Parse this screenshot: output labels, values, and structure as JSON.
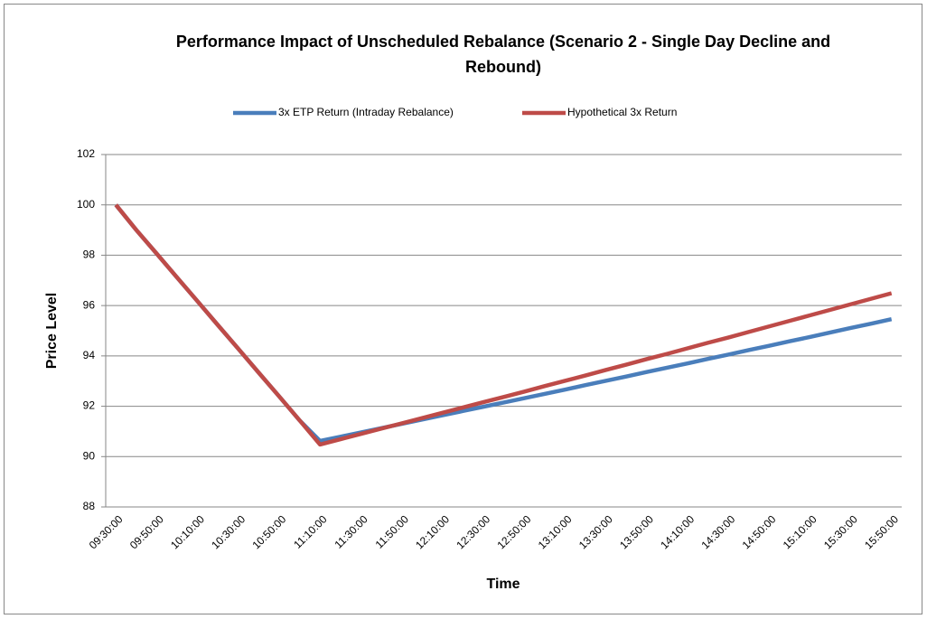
{
  "chart_data": {
    "type": "line",
    "title": "Performance Impact of Unscheduled Rebalance (Scenario 2 - Single Day Decline and Rebound)",
    "xlabel": "Time",
    "ylabel": "Price Level",
    "categories": [
      "09:30:00",
      null,
      "09:50:00",
      null,
      "10:10:00",
      null,
      "10:30:00",
      null,
      "10:50:00",
      null,
      "11:10:00",
      null,
      "11:30:00",
      null,
      "11:50:00",
      null,
      "12:10:00",
      null,
      "12:30:00",
      null,
      "12:50:00",
      null,
      "13:10:00",
      null,
      "13:30:00",
      null,
      "13:50:00",
      null,
      "14:10:00",
      null,
      "14:30:00",
      null,
      "14:50:00",
      null,
      "15:10:00",
      null,
      "15:30:00",
      null,
      "15:50:00"
    ],
    "series": [
      {
        "name": "3x ETP Return (Intraday Rebalance)",
        "color": "#4a7ebb",
        "values": [
          100,
          99,
          98.06,
          97.11,
          96.17,
          95.22,
          94.28,
          93.33,
          92.39,
          91.44,
          90.62,
          90.79,
          90.96,
          91.13,
          91.3,
          91.47,
          91.64,
          91.81,
          91.98,
          92.15,
          92.32,
          92.49,
          92.66,
          92.84,
          93.01,
          93.18,
          93.36,
          93.53,
          93.7,
          93.88,
          94.05,
          94.23,
          94.4,
          94.58,
          94.75,
          94.93,
          95.11,
          95.28,
          95.46
        ]
      },
      {
        "name": "Hypothetical 3x Return",
        "color": "#be4b48",
        "values": [
          100,
          99,
          98.06,
          97.11,
          96.17,
          95.22,
          94.28,
          93.33,
          92.39,
          91.44,
          90.48,
          90.69,
          90.9,
          91.11,
          91.32,
          91.53,
          91.74,
          91.95,
          92.16,
          92.37,
          92.58,
          92.8,
          93.01,
          93.22,
          93.44,
          93.65,
          93.87,
          94.08,
          94.3,
          94.52,
          94.73,
          94.95,
          95.17,
          95.39,
          95.61,
          95.83,
          96.05,
          96.27,
          96.49
        ]
      }
    ],
    "ylim": [
      88,
      102
    ],
    "yticks": [
      88,
      90,
      92,
      94,
      96,
      98,
      100,
      102
    ],
    "grid": true,
    "legend": "top"
  }
}
